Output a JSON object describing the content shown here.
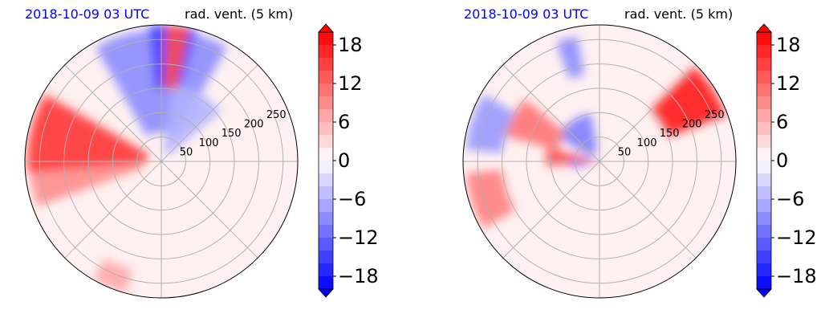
{
  "chart_data": [
    {
      "type": "heatmap",
      "subtype": "polar-contourf",
      "title_left": "2018-10-09 03 UTC",
      "title_right": "rad. vent. (5 km)",
      "radial_ticks": [
        50,
        100,
        150,
        200,
        250
      ],
      "radial_max": 280,
      "grid": true,
      "colormap": "bwr",
      "features": [
        {
          "kind": "band",
          "value": 16,
          "r0": 30,
          "r1": 275,
          "theta0": 150,
          "theta1": 185
        },
        {
          "kind": "band",
          "value": 9,
          "r0": 40,
          "r1": 270,
          "theta0": 185,
          "theta1": 200
        },
        {
          "kind": "band",
          "value": -9,
          "r0": 60,
          "r1": 270,
          "theta0": 60,
          "theta1": 120
        },
        {
          "kind": "band",
          "value": -15,
          "r0": 150,
          "r1": 280,
          "theta0": 75,
          "theta1": 95
        },
        {
          "kind": "band",
          "value": -6,
          "r0": 20,
          "r1": 160,
          "theta0": 40,
          "theta1": 80
        },
        {
          "kind": "band",
          "value": 7,
          "r0": 230,
          "r1": 280,
          "theta0": 240,
          "theta1": 255
        },
        {
          "kind": "band",
          "value": 14,
          "r0": 150,
          "r1": 280,
          "theta0": 78,
          "theta1": 88
        }
      ]
    },
    {
      "type": "heatmap",
      "subtype": "polar-contourf",
      "title_left": "2018-10-09 03 UTC",
      "title_right": "rad. vent. (5 km)",
      "radial_ticks": [
        50,
        100,
        150,
        200,
        250
      ],
      "radial_max": 280,
      "grid": true,
      "colormap": "bwr",
      "features": [
        {
          "kind": "band",
          "value": 18,
          "r0": 150,
          "r1": 275,
          "theta0": 20,
          "theta1": 45
        },
        {
          "kind": "band",
          "value": 14,
          "r0": 0,
          "r1": 110,
          "theta0": 165,
          "theta1": 185
        },
        {
          "kind": "band",
          "value": -16,
          "r0": 0,
          "r1": 60,
          "theta0": 180,
          "theta1": 190
        },
        {
          "kind": "band",
          "value": -10,
          "r0": 20,
          "r1": 100,
          "theta0": 100,
          "theta1": 150
        },
        {
          "kind": "band",
          "value": 11,
          "r0": 90,
          "r1": 200,
          "theta0": 140,
          "theta1": 165
        },
        {
          "kind": "band",
          "value": 10,
          "r0": 200,
          "r1": 275,
          "theta0": 185,
          "theta1": 210
        },
        {
          "kind": "band",
          "value": -8,
          "r0": 200,
          "r1": 275,
          "theta0": 150,
          "theta1": 175
        },
        {
          "kind": "band",
          "value": -9,
          "r0": 180,
          "r1": 260,
          "theta0": 100,
          "theta1": 110
        }
      ]
    }
  ],
  "colorbar": {
    "ticks": [
      18,
      12,
      6,
      0,
      -6,
      -12,
      -18
    ],
    "tick_labels": [
      "18",
      "12",
      "6",
      "0",
      "−6",
      "−12",
      "−18"
    ],
    "vmin": -20,
    "vmax": 20,
    "levels": 20,
    "extend": "both"
  },
  "colors": {
    "title_left": "#0000ff",
    "title_right": "#000000",
    "positive": "#ff0000",
    "negative": "#0000ff",
    "grid": "#b0b0b0"
  }
}
